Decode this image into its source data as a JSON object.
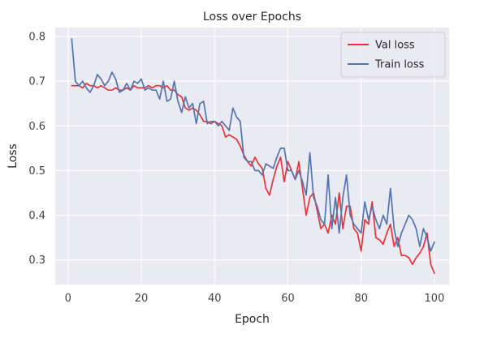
{
  "chart_data": {
    "type": "line",
    "title": "Loss over Epochs",
    "xlabel": "Epoch",
    "ylabel": "Loss",
    "xlim": [
      -3.5,
      104
    ],
    "ylim": [
      0.245,
      0.82
    ],
    "xticks": [
      "0",
      "20",
      "40",
      "60",
      "80",
      "100"
    ],
    "yticks": [
      "0.3",
      "0.4",
      "0.5",
      "0.6",
      "0.7",
      "0.8"
    ],
    "grid": true,
    "legend_position": "top-right",
    "series": [
      {
        "name": "Val loss",
        "color": "#e8333a",
        "x": [
          1,
          2,
          3,
          4,
          5,
          6,
          7,
          8,
          9,
          10,
          11,
          12,
          13,
          14,
          15,
          16,
          17,
          18,
          19,
          20,
          21,
          22,
          23,
          24,
          25,
          26,
          27,
          28,
          29,
          30,
          31,
          32,
          33,
          34,
          35,
          36,
          37,
          38,
          39,
          40,
          41,
          42,
          43,
          44,
          45,
          46,
          47,
          48,
          49,
          50,
          51,
          52,
          53,
          54,
          55,
          56,
          57,
          58,
          59,
          60,
          61,
          62,
          63,
          64,
          65,
          66,
          67,
          68,
          69,
          70,
          71,
          72,
          73,
          74,
          75,
          76,
          77,
          78,
          79,
          80,
          81,
          82,
          83,
          84,
          85,
          86,
          87,
          88,
          89,
          90,
          91,
          92,
          93,
          94,
          95,
          96,
          97,
          98,
          99,
          100
        ],
        "y": [
          0.69,
          0.69,
          0.69,
          0.685,
          0.695,
          0.69,
          0.69,
          0.685,
          0.69,
          0.685,
          0.68,
          0.68,
          0.685,
          0.68,
          0.68,
          0.685,
          0.68,
          0.69,
          0.685,
          0.685,
          0.685,
          0.69,
          0.685,
          0.69,
          0.69,
          0.685,
          0.69,
          0.68,
          0.68,
          0.67,
          0.665,
          0.64,
          0.635,
          0.64,
          0.635,
          0.625,
          0.61,
          0.61,
          0.605,
          0.61,
          0.605,
          0.6,
          0.575,
          0.58,
          0.575,
          0.57,
          0.555,
          0.535,
          0.52,
          0.51,
          0.53,
          0.515,
          0.505,
          0.46,
          0.445,
          0.48,
          0.51,
          0.53,
          0.475,
          0.52,
          0.5,
          0.48,
          0.52,
          0.46,
          0.4,
          0.44,
          0.45,
          0.41,
          0.37,
          0.38,
          0.36,
          0.4,
          0.38,
          0.45,
          0.37,
          0.42,
          0.42,
          0.37,
          0.36,
          0.32,
          0.39,
          0.38,
          0.43,
          0.35,
          0.345,
          0.335,
          0.36,
          0.38,
          0.33,
          0.35,
          0.31,
          0.31,
          0.305,
          0.29,
          0.305,
          0.315,
          0.33,
          0.36,
          0.29,
          0.27
        ]
      },
      {
        "name": "Train loss",
        "color": "#5275b0",
        "x": [
          1,
          2,
          3,
          4,
          5,
          6,
          7,
          8,
          9,
          10,
          11,
          12,
          13,
          14,
          15,
          16,
          17,
          18,
          19,
          20,
          21,
          22,
          23,
          24,
          25,
          26,
          27,
          28,
          29,
          30,
          31,
          32,
          33,
          34,
          35,
          36,
          37,
          38,
          39,
          40,
          41,
          42,
          43,
          44,
          45,
          46,
          47,
          48,
          49,
          50,
          51,
          52,
          53,
          54,
          55,
          56,
          57,
          58,
          59,
          60,
          61,
          62,
          63,
          64,
          65,
          66,
          67,
          68,
          69,
          70,
          71,
          72,
          73,
          74,
          75,
          76,
          77,
          78,
          79,
          80,
          81,
          82,
          83,
          84,
          85,
          86,
          87,
          88,
          89,
          90,
          91,
          92,
          93,
          94,
          95,
          96,
          97,
          98,
          99,
          100
        ],
        "y": [
          0.795,
          0.7,
          0.69,
          0.7,
          0.685,
          0.675,
          0.69,
          0.715,
          0.705,
          0.69,
          0.7,
          0.72,
          0.705,
          0.675,
          0.68,
          0.695,
          0.68,
          0.7,
          0.695,
          0.705,
          0.68,
          0.685,
          0.68,
          0.68,
          0.66,
          0.7,
          0.655,
          0.66,
          0.7,
          0.655,
          0.63,
          0.665,
          0.64,
          0.65,
          0.605,
          0.65,
          0.655,
          0.605,
          0.61,
          0.61,
          0.6,
          0.61,
          0.6,
          0.59,
          0.64,
          0.62,
          0.61,
          0.53,
          0.52,
          0.52,
          0.5,
          0.5,
          0.49,
          0.515,
          0.51,
          0.505,
          0.53,
          0.55,
          0.55,
          0.5,
          0.5,
          0.48,
          0.5,
          0.475,
          0.445,
          0.54,
          0.44,
          0.42,
          0.39,
          0.38,
          0.49,
          0.37,
          0.44,
          0.36,
          0.44,
          0.49,
          0.4,
          0.38,
          0.37,
          0.36,
          0.43,
          0.39,
          0.42,
          0.39,
          0.37,
          0.4,
          0.38,
          0.46,
          0.37,
          0.33,
          0.36,
          0.38,
          0.4,
          0.39,
          0.37,
          0.33,
          0.37,
          0.35,
          0.32,
          0.34
        ]
      }
    ]
  }
}
